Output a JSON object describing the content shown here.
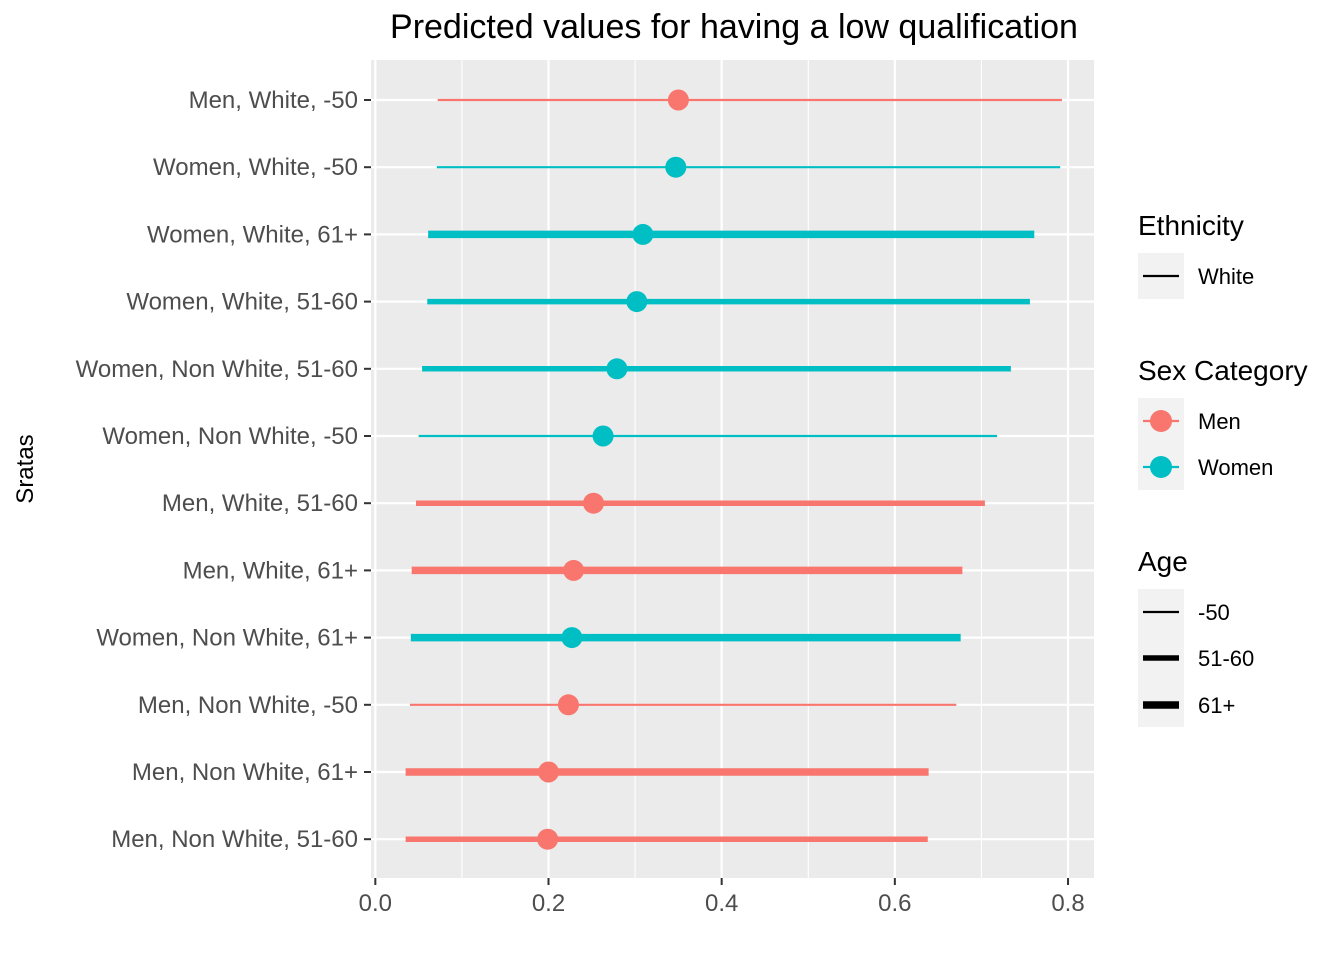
{
  "chart_data": {
    "type": "errorbar",
    "title": "Predicted values for having a low qualification",
    "xlabel": "",
    "ylabel": "Sratas",
    "xlim": [
      -0.005,
      0.83
    ],
    "x_ticks": [
      0.0,
      0.2,
      0.4,
      0.6,
      0.8
    ],
    "x_tick_labels": [
      "0.0",
      "0.2",
      "0.4",
      "0.6",
      "0.8"
    ],
    "grid": true,
    "legend_position": "right",
    "colors": {
      "Men": "#F8766D",
      "Women": "#00BFC4",
      "panel": "#EBEBEB",
      "grid": "#FFFFFF"
    },
    "rows": [
      {
        "label": "Men, White, -50",
        "sex": "Men",
        "ethnicity": "White",
        "age": "-50",
        "estimate": 0.35,
        "low": 0.072,
        "high": 0.793
      },
      {
        "label": "Women, White, -50",
        "sex": "Women",
        "ethnicity": "White",
        "age": "-50",
        "estimate": 0.347,
        "low": 0.071,
        "high": 0.791
      },
      {
        "label": "Women, White, 61+",
        "sex": "Women",
        "ethnicity": "White",
        "age": "61+",
        "estimate": 0.309,
        "low": 0.061,
        "high": 0.761
      },
      {
        "label": "Women, White, 51-60",
        "sex": "Women",
        "ethnicity": "White",
        "age": "51-60",
        "estimate": 0.302,
        "low": 0.06,
        "high": 0.756
      },
      {
        "label": "Women, Non White, 51-60",
        "sex": "Women",
        "ethnicity": "Non White",
        "age": "51-60",
        "estimate": 0.279,
        "low": 0.054,
        "high": 0.734
      },
      {
        "label": "Women, Non White, -50",
        "sex": "Women",
        "ethnicity": "Non White",
        "age": "-50",
        "estimate": 0.263,
        "low": 0.05,
        "high": 0.718
      },
      {
        "label": "Men, White, 51-60",
        "sex": "Men",
        "ethnicity": "White",
        "age": "51-60",
        "estimate": 0.252,
        "low": 0.047,
        "high": 0.704
      },
      {
        "label": "Men, White, 61+",
        "sex": "Men",
        "ethnicity": "White",
        "age": "61+",
        "estimate": 0.229,
        "low": 0.042,
        "high": 0.678
      },
      {
        "label": "Women, Non White, 61+",
        "sex": "Women",
        "ethnicity": "Non White",
        "age": "61+",
        "estimate": 0.227,
        "low": 0.041,
        "high": 0.676
      },
      {
        "label": "Men, Non White, -50",
        "sex": "Men",
        "ethnicity": "Non White",
        "age": "-50",
        "estimate": 0.223,
        "low": 0.04,
        "high": 0.671
      },
      {
        "label": "Men, Non White, 61+",
        "sex": "Men",
        "ethnicity": "Non White",
        "age": "61+",
        "estimate": 0.2,
        "low": 0.035,
        "high": 0.639
      },
      {
        "label": "Men, Non White, 51-60",
        "sex": "Men",
        "ethnicity": "Non White",
        "age": "51-60",
        "estimate": 0.199,
        "low": 0.035,
        "high": 0.638
      }
    ],
    "legends": {
      "ethnicity": {
        "title": "Ethnicity",
        "items": [
          "White"
        ]
      },
      "sex": {
        "title": "Sex Category",
        "items": [
          "Men",
          "Women"
        ]
      },
      "age": {
        "title": "Age",
        "items": [
          "-50",
          "51-60",
          "61+"
        ]
      }
    }
  }
}
